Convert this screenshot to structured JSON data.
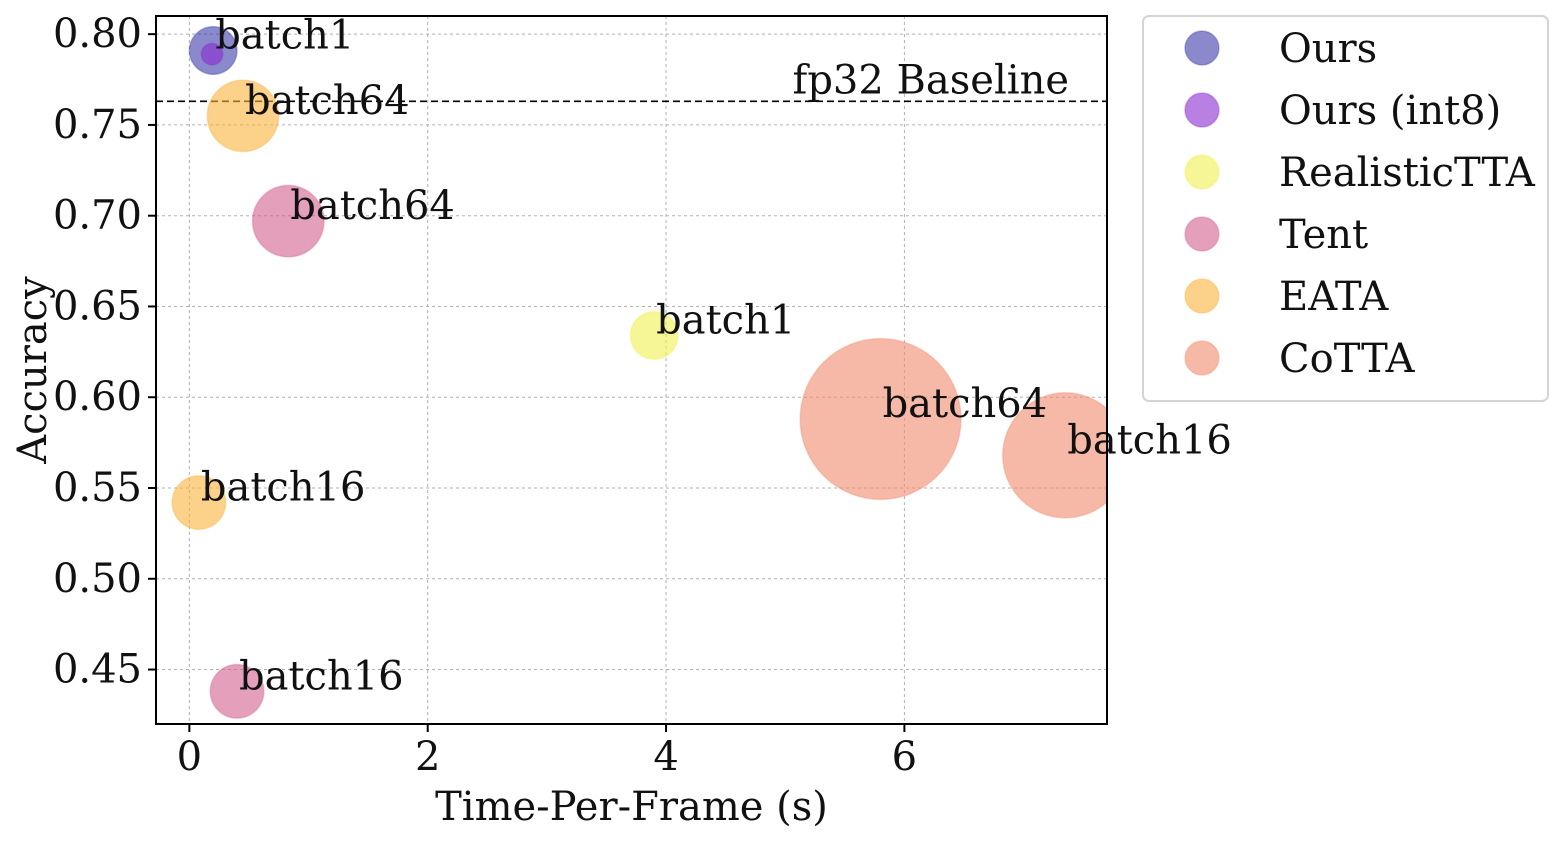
{
  "chart_data": {
    "type": "scatter",
    "title": "",
    "xlabel": "Time-Per-Frame (s)",
    "ylabel": "Accuracy",
    "xlim": [
      -0.28,
      7.7
    ],
    "ylim": [
      0.42,
      0.81
    ],
    "xticks": [
      0,
      2,
      4,
      6
    ],
    "xtick_labels": [
      "0",
      "2",
      "4",
      "6"
    ],
    "yticks": [
      0.45,
      0.5,
      0.55,
      0.6,
      0.65,
      0.7,
      0.75,
      0.8
    ],
    "ytick_labels": [
      "0.45",
      "0.50",
      "0.55",
      "0.60",
      "0.65",
      "0.70",
      "0.75",
      "0.80"
    ],
    "grid": true,
    "legend_position": "outside-right-top",
    "baseline": {
      "y": 0.763,
      "label": "fp32 Baseline",
      "style": "dashed"
    },
    "series": [
      {
        "name": "Ours",
        "color": "#3b3ba8",
        "points": [
          {
            "x": 0.2,
            "y": 0.791,
            "size": 0.4,
            "label": "batch1"
          }
        ]
      },
      {
        "name": "Ours (int8)",
        "color": "#8a2bd0",
        "points": [
          {
            "x": 0.19,
            "y": 0.789,
            "size": 0.18,
            "label": ""
          }
        ]
      },
      {
        "name": "RealisticTTA",
        "color": "#f0f050",
        "points": [
          {
            "x": 3.9,
            "y": 0.634,
            "size": 0.4,
            "label": "batch1"
          }
        ]
      },
      {
        "name": "Tent",
        "color": "#d2608c",
        "points": [
          {
            "x": 0.83,
            "y": 0.697,
            "size": 0.6,
            "label": "batch64"
          },
          {
            "x": 0.4,
            "y": 0.438,
            "size": 0.45,
            "label": "batch16"
          }
        ]
      },
      {
        "name": "EATA",
        "color": "#fab23c",
        "points": [
          {
            "x": 0.45,
            "y": 0.755,
            "size": 0.6,
            "label": "batch64"
          },
          {
            "x": 0.08,
            "y": 0.542,
            "size": 0.45,
            "label": "batch16"
          }
        ]
      },
      {
        "name": "CoTTA",
        "color": "#f08a6e",
        "points": [
          {
            "x": 5.8,
            "y": 0.588,
            "size": 1.35,
            "label": "batch64"
          },
          {
            "x": 7.35,
            "y": 0.568,
            "size": 1.05,
            "label": "batch16"
          }
        ]
      }
    ]
  }
}
